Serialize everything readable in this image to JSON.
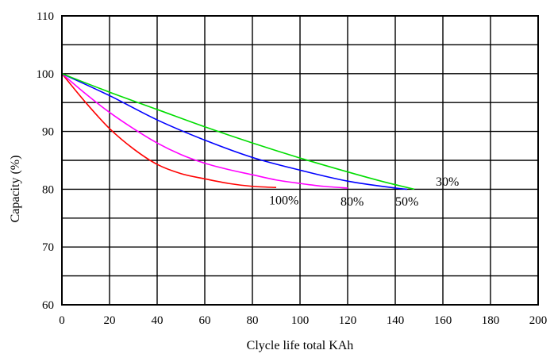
{
  "chart_data": {
    "type": "line",
    "title": "",
    "xlabel": "Clycle life total KAh",
    "ylabel": "Capacity (%)",
    "xlim": [
      0,
      200
    ],
    "ylim": [
      60,
      110
    ],
    "x_ticks": [
      "0",
      "20",
      "40",
      "60",
      "80",
      "100",
      "120",
      "140",
      "160",
      "180",
      "200"
    ],
    "y_ticks": [
      "60",
      "70",
      "80",
      "90",
      "100",
      "110"
    ],
    "grid": true,
    "series": [
      {
        "name": "100%",
        "color": "#ff0000",
        "points": [
          [
            0,
            100
          ],
          [
            10,
            95
          ],
          [
            20,
            90.5
          ],
          [
            30,
            87
          ],
          [
            40,
            84.3
          ],
          [
            50,
            82.7
          ],
          [
            60,
            81.8
          ],
          [
            70,
            81
          ],
          [
            80,
            80.5
          ],
          [
            90,
            80.3
          ]
        ]
      },
      {
        "name": "80%",
        "color": "#ff00ff",
        "points": [
          [
            0,
            100
          ],
          [
            10,
            96.5
          ],
          [
            20,
            93.3
          ],
          [
            30,
            90.5
          ],
          [
            40,
            88
          ],
          [
            50,
            86
          ],
          [
            60,
            84.5
          ],
          [
            70,
            83.4
          ],
          [
            80,
            82.5
          ],
          [
            90,
            81.6
          ],
          [
            100,
            81
          ],
          [
            110,
            80.5
          ],
          [
            120,
            80.2
          ]
        ]
      },
      {
        "name": "50%",
        "color": "#0000ff",
        "points": [
          [
            0,
            100
          ],
          [
            20,
            96.2
          ],
          [
            40,
            92
          ],
          [
            60,
            88.5
          ],
          [
            80,
            85.5
          ],
          [
            100,
            83.3
          ],
          [
            120,
            81.4
          ],
          [
            140,
            80.2
          ],
          [
            145,
            80
          ]
        ]
      },
      {
        "name": "30%",
        "color": "#00dd00",
        "points": [
          [
            0,
            100
          ],
          [
            20,
            96.8
          ],
          [
            40,
            93.8
          ],
          [
            60,
            90.8
          ],
          [
            80,
            88
          ],
          [
            100,
            85.4
          ],
          [
            120,
            83
          ],
          [
            135,
            81.3
          ],
          [
            148,
            80
          ]
        ]
      }
    ]
  }
}
